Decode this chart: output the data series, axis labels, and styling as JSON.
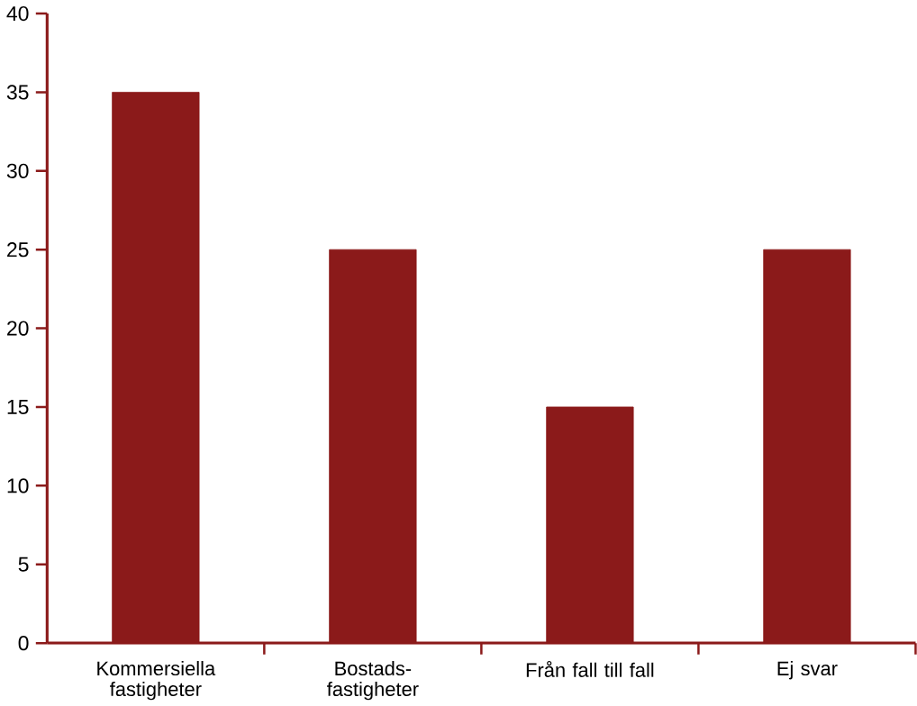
{
  "chart_data": {
    "type": "bar",
    "categories": [
      "Kommersiella fastigheter",
      "Bostads-fastigheter",
      "Från fall till fall",
      "Ej svar"
    ],
    "values": [
      35,
      25,
      15,
      25
    ],
    "color": "#8b1a1a",
    "ylim": [
      0,
      40
    ],
    "yticks": [
      0,
      5,
      10,
      15,
      20,
      25,
      30,
      35,
      40
    ],
    "grid": false
  }
}
